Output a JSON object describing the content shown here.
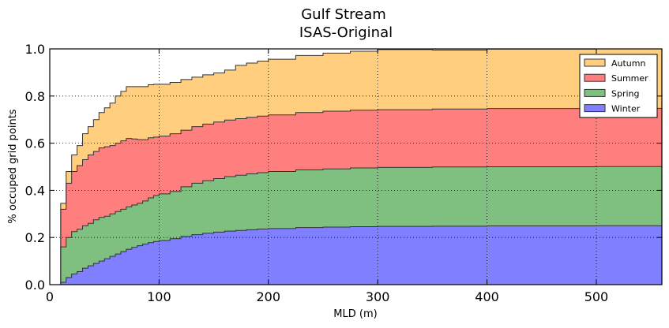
{
  "chart_data": {
    "type": "area",
    "title": "Gulf Stream",
    "subtitle": "ISAS-Original",
    "xlabel": "MLD (m)",
    "ylabel": "% occuped grid points",
    "xlim": [
      0,
      560
    ],
    "ylim": [
      0.0,
      1.0
    ],
    "xticks": [
      0,
      100,
      200,
      300,
      400,
      500
    ],
    "xtick_labels": [
      "0",
      "100",
      "200",
      "300",
      "400",
      "500"
    ],
    "yticks": [
      0.0,
      0.2,
      0.4,
      0.6,
      0.8,
      1.0
    ],
    "ytick_labels": [
      "0.0",
      "0.2",
      "0.4",
      "0.6",
      "0.8",
      "1.0"
    ],
    "grid": true,
    "stacked": true,
    "step": true,
    "legend_position": "top-right",
    "x": [
      0,
      10,
      15,
      20,
      25,
      30,
      35,
      40,
      45,
      50,
      55,
      60,
      65,
      70,
      75,
      80,
      85,
      90,
      95,
      100,
      110,
      120,
      130,
      140,
      150,
      160,
      170,
      180,
      190,
      200,
      225,
      250,
      275,
      300,
      350,
      400,
      450,
      500,
      560
    ],
    "series": [
      {
        "name": "Winter",
        "color": "#7f7fff",
        "values": [
          0.0,
          0.01,
          0.03,
          0.045,
          0.055,
          0.07,
          0.08,
          0.09,
          0.1,
          0.11,
          0.12,
          0.13,
          0.14,
          0.15,
          0.158,
          0.165,
          0.172,
          0.178,
          0.183,
          0.187,
          0.195,
          0.205,
          0.212,
          0.218,
          0.223,
          0.227,
          0.23,
          0.233,
          0.236,
          0.238,
          0.242,
          0.244,
          0.246,
          0.247,
          0.248,
          0.249,
          0.249,
          0.25,
          0.25
        ]
      },
      {
        "name": "Spring",
        "color": "#7fbf7f",
        "values": [
          0.0,
          0.15,
          0.17,
          0.18,
          0.18,
          0.18,
          0.18,
          0.185,
          0.185,
          0.18,
          0.18,
          0.18,
          0.18,
          0.18,
          0.18,
          0.18,
          0.183,
          0.19,
          0.195,
          0.198,
          0.2,
          0.21,
          0.218,
          0.223,
          0.227,
          0.231,
          0.234,
          0.237,
          0.239,
          0.242,
          0.245,
          0.247,
          0.249,
          0.25,
          0.251,
          0.251,
          0.251,
          0.251,
          0.252
        ]
      },
      {
        "name": "Summer",
        "color": "#ff7f7f",
        "values": [
          0.0,
          0.16,
          0.23,
          0.255,
          0.27,
          0.28,
          0.29,
          0.29,
          0.295,
          0.295,
          0.29,
          0.29,
          0.29,
          0.29,
          0.28,
          0.27,
          0.26,
          0.255,
          0.248,
          0.245,
          0.245,
          0.24,
          0.24,
          0.24,
          0.24,
          0.24,
          0.24,
          0.24,
          0.24,
          0.24,
          0.243,
          0.245,
          0.245,
          0.245,
          0.246,
          0.247,
          0.247,
          0.247,
          0.248
        ]
      },
      {
        "name": "Autumn",
        "color": "#ffcf7f",
        "values": [
          0.0,
          0.025,
          0.05,
          0.07,
          0.085,
          0.11,
          0.12,
          0.135,
          0.15,
          0.165,
          0.18,
          0.2,
          0.21,
          0.22,
          0.222,
          0.225,
          0.225,
          0.225,
          0.224,
          0.22,
          0.218,
          0.215,
          0.21,
          0.209,
          0.208,
          0.212,
          0.226,
          0.23,
          0.233,
          0.236,
          0.242,
          0.246,
          0.25,
          0.255,
          0.25,
          0.252,
          0.252,
          0.252,
          0.25
        ]
      }
    ],
    "legend_order": [
      "Autumn",
      "Summer",
      "Spring",
      "Winter"
    ]
  }
}
